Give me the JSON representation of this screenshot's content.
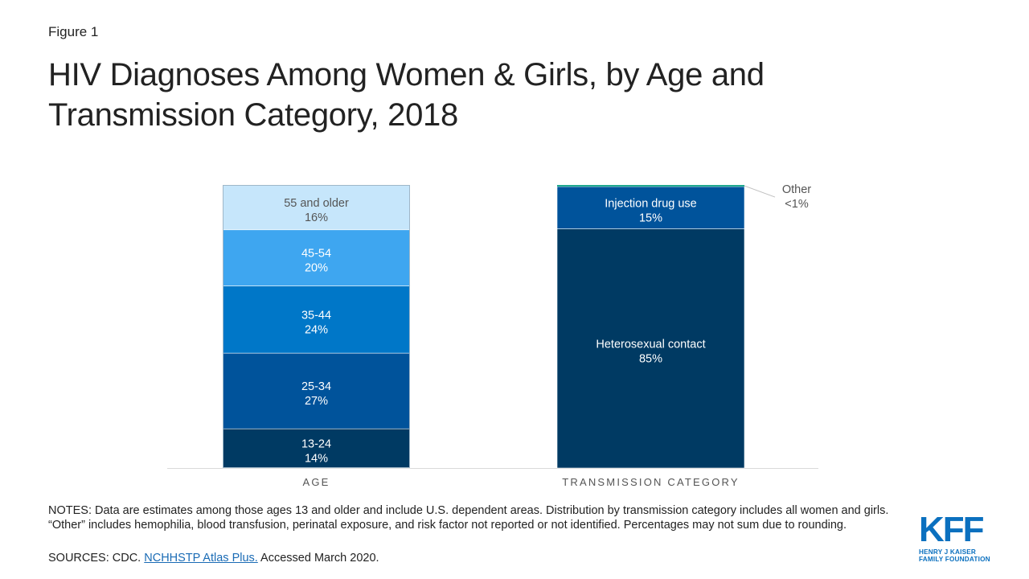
{
  "figure_label": "Figure 1",
  "title": "HIV Diagnoses Among Women & Girls, by Age and Transmission Category, 2018",
  "chart_data": {
    "type": "bar",
    "stacked": true,
    "title": "HIV Diagnoses Among Women & Girls, by Age and Transmission Category, 2018",
    "ylim": [
      0,
      100
    ],
    "grid": false,
    "categories": [
      "AGE",
      "TRANSMISSION CATEGORY"
    ],
    "bars": [
      {
        "category": "AGE",
        "segments": [
          {
            "label": "13-24",
            "value_label": "14%",
            "value": 14,
            "color": "#003a63",
            "text_color": "#ffffff"
          },
          {
            "label": "25-34",
            "value_label": "27%",
            "value": 27,
            "color": "#00539b",
            "text_color": "#ffffff"
          },
          {
            "label": "35-44",
            "value_label": "24%",
            "value": 24,
            "color": "#0077c8",
            "text_color": "#ffffff"
          },
          {
            "label": "45-54",
            "value_label": "20%",
            "value": 20,
            "color": "#3ea6f0",
            "text_color": "#ffffff"
          },
          {
            "label": "55 and older",
            "value_label": "16%",
            "value": 16,
            "color": "#c6e6fb",
            "text_color": "#555555"
          }
        ]
      },
      {
        "category": "TRANSMISSION CATEGORY",
        "segments": [
          {
            "label": "Heterosexual contact",
            "value_label": "85%",
            "value": 85,
            "color": "#003a63",
            "text_color": "#ffffff"
          },
          {
            "label": "Injection drug use",
            "value_label": "15%",
            "value": 15,
            "color": "#00539b",
            "text_color": "#ffffff"
          },
          {
            "label": "Other",
            "value_label": "<1%",
            "value": 0.6,
            "color": "#1fa88e",
            "text_color": "#555555",
            "callout": true
          }
        ]
      }
    ]
  },
  "notes": "NOTES: Data are estimates among those ages 13 and older and include U.S. dependent areas. Distribution by transmission category includes all women and girls. “Other” includes hemophilia, blood transfusion, perinatal exposure, and risk factor not reported or not identified. Percentages may not sum due to rounding.",
  "sources": {
    "prefix": "SOURCES: CDC.",
    "link_text": "NCHHSTP Atlas Plus.",
    "suffix": "Accessed March 2020."
  },
  "logo": {
    "mark": "KFF",
    "line1": "HENRY J KAISER",
    "line2": "FAMILY FOUNDATION",
    "color": "#0b70bf"
  }
}
